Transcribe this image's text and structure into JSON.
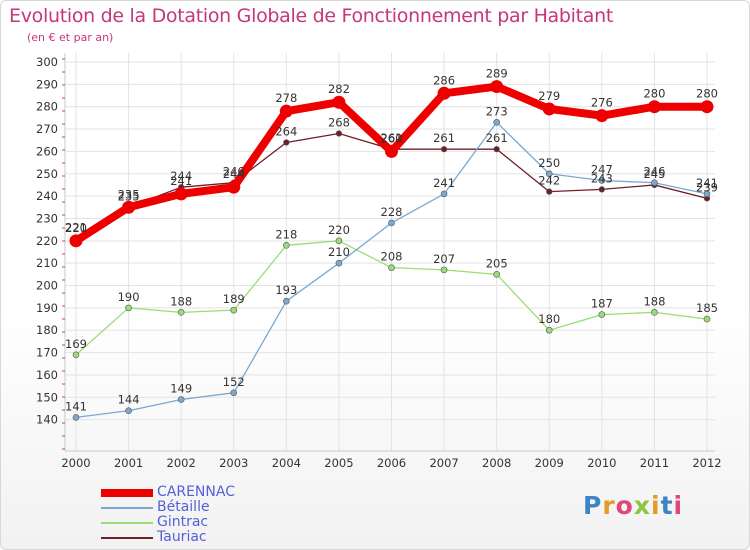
{
  "title": "Evolution de la Dotation Globale de Fonctionnement par Habitant",
  "subtitle": "(en € et par an)",
  "logo": "Proxiti",
  "chart_data": {
    "type": "line",
    "x": [
      "2000",
      "2001",
      "2002",
      "2003",
      "2004",
      "2005",
      "2006",
      "2007",
      "2008",
      "2009",
      "2010",
      "2011",
      "2012"
    ],
    "ylim": [
      130,
      300
    ],
    "yticks": [
      140,
      150,
      160,
      170,
      180,
      190,
      200,
      210,
      220,
      230,
      240,
      250,
      260,
      270,
      280,
      290,
      300
    ],
    "grid": true,
    "legend_position": "bottom-left",
    "series": [
      {
        "name": "Tauriac",
        "color": "#6e1f2a",
        "width": 1.3,
        "marker": 2.8,
        "values": [
          221,
          235,
          244,
          246,
          264,
          268,
          261,
          261,
          261,
          242,
          243,
          245,
          239
        ],
        "labels": [
          "221",
          "235",
          "244",
          "246",
          "264",
          "268",
          "261",
          "261",
          "261",
          "242",
          "243",
          "245",
          "239"
        ]
      },
      {
        "name": "Gintrac",
        "color": "#99dd77",
        "width": 1.3,
        "marker": 3,
        "values": [
          169,
          190,
          188,
          189,
          218,
          220,
          208,
          207,
          205,
          180,
          187,
          188,
          185
        ],
        "labels": [
          "169",
          "190",
          "188",
          "189",
          "218",
          "220",
          "208",
          "207",
          "205",
          "180",
          "187",
          "188",
          "185"
        ]
      },
      {
        "name": "Bétaille",
        "color": "#7aa8d0",
        "width": 1.3,
        "marker": 3,
        "values": [
          141,
          144,
          149,
          152,
          193,
          210,
          228,
          241,
          273,
          250,
          247,
          246,
          241
        ],
        "labels": [
          "141",
          "144",
          "149",
          "152",
          "193",
          "210",
          "228",
          "241",
          "273",
          "250",
          "247",
          "246",
          "241"
        ]
      },
      {
        "name": "CARENNAC",
        "color": "#ee0000",
        "width": 8,
        "marker": 6.5,
        "values": [
          220,
          235,
          241,
          244,
          278,
          282,
          260,
          286,
          289,
          279,
          276,
          280,
          280
        ],
        "labels": [
          "220",
          "235",
          "241",
          "244",
          "278",
          "282",
          "260",
          "286",
          "289",
          "279",
          "276",
          "280",
          "280"
        ]
      }
    ],
    "legend_order": [
      "CARENNAC",
      "Bétaille",
      "Gintrac",
      "Tauriac"
    ]
  }
}
